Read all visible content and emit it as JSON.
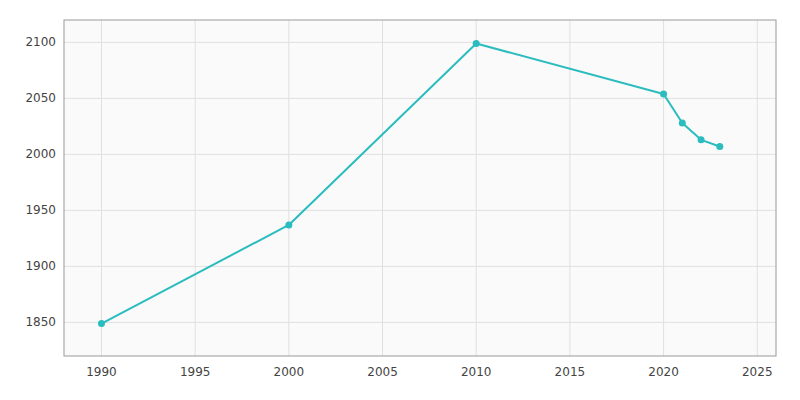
{
  "chart_data": {
    "type": "line",
    "x": [
      1990,
      2000,
      2010,
      2020,
      2021,
      2022,
      2023
    ],
    "values": [
      1849,
      1937,
      2099,
      2054,
      2028,
      2013,
      2007
    ],
    "color": "#2bbcbf",
    "marker": "circle",
    "xlim": [
      1988,
      2026
    ],
    "ylim": [
      1820,
      2120
    ],
    "xticks": [
      1990,
      1995,
      2000,
      2005,
      2010,
      2015,
      2020,
      2025
    ],
    "yticks": [
      1850,
      1900,
      1950,
      2000,
      2050,
      2100
    ],
    "grid": true
  }
}
